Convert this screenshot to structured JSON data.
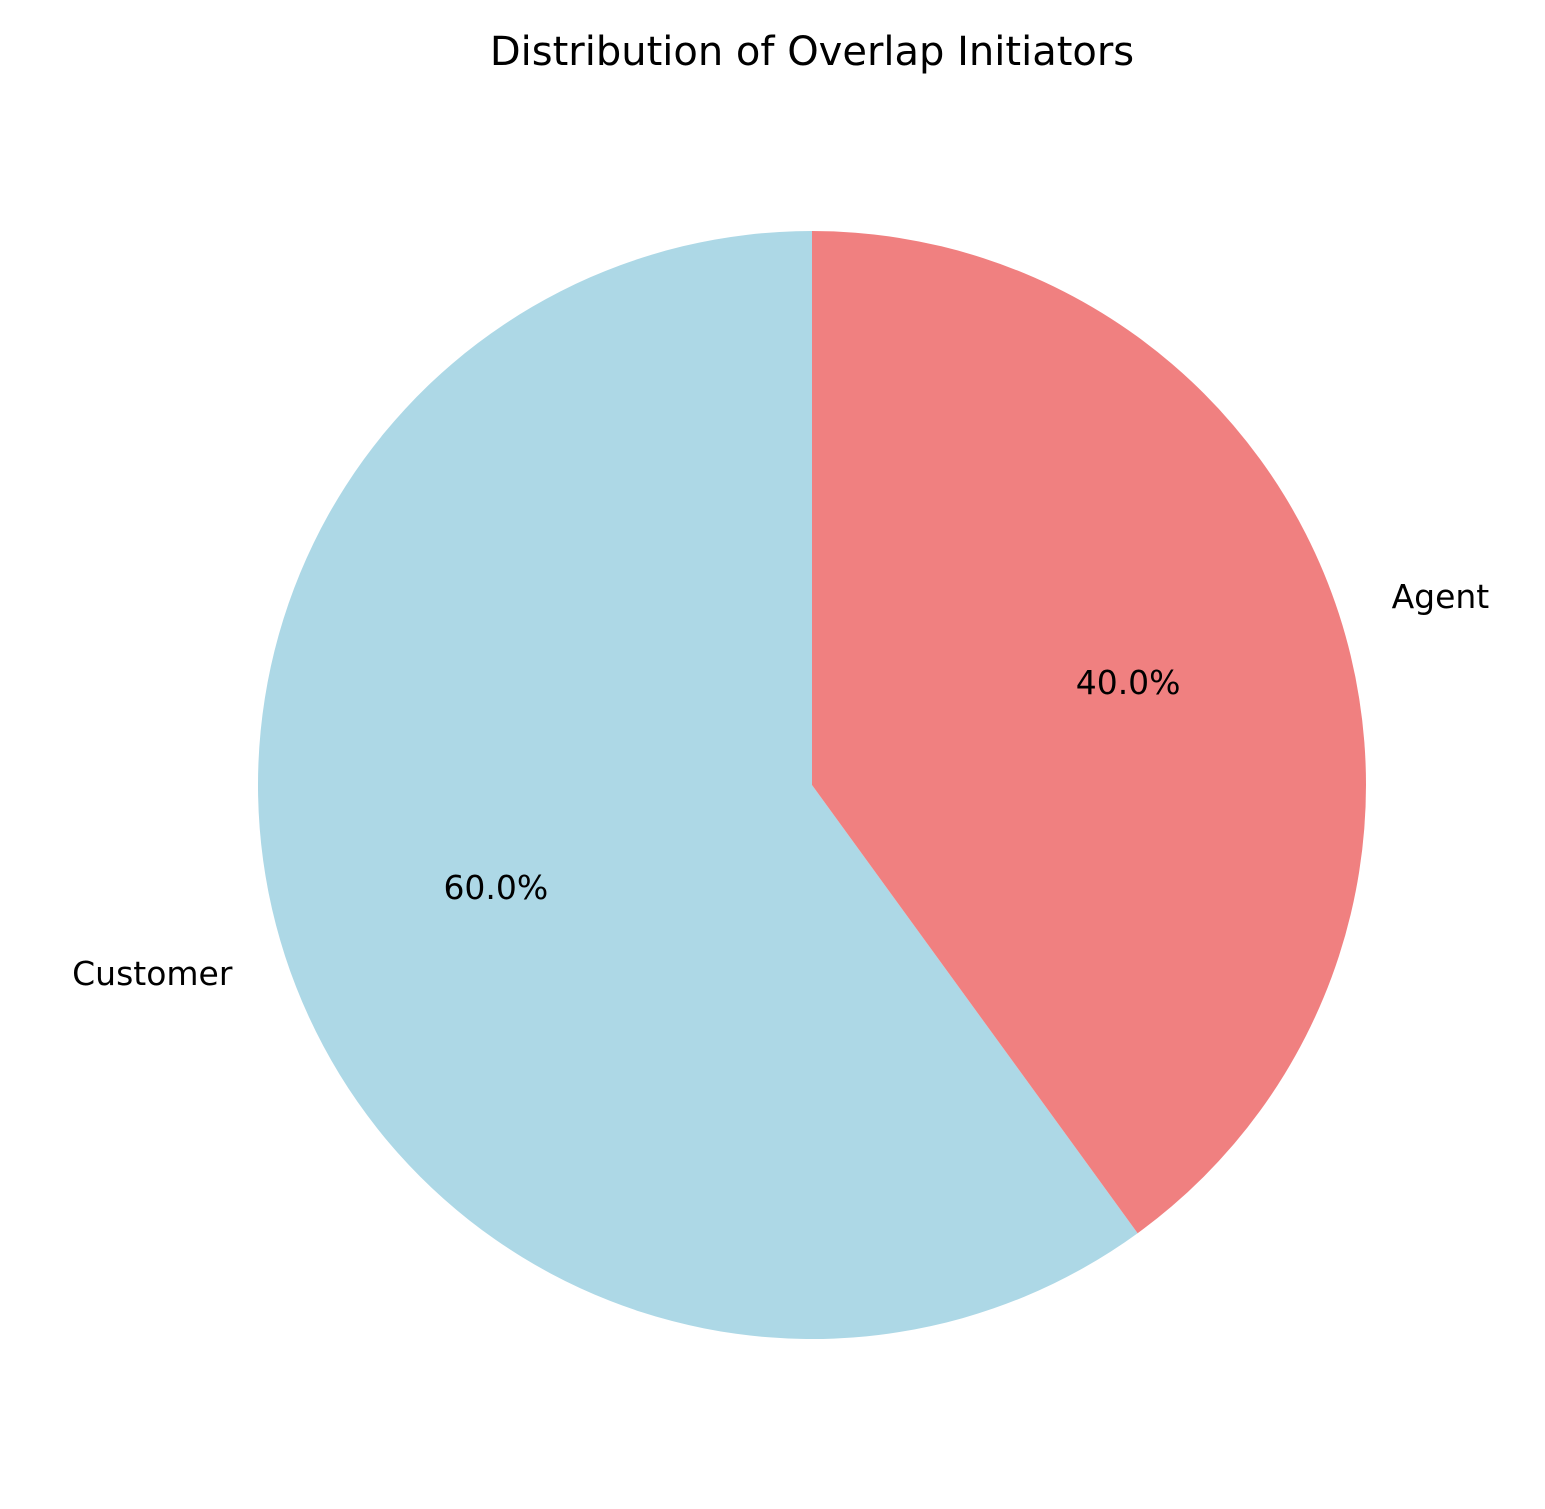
{
  "chart_data": {
    "type": "pie",
    "title": "Distribution of Overlap Initiators",
    "categories": [
      "Customer",
      "Agent"
    ],
    "values": [
      60.0,
      40.0
    ],
    "percent_labels": [
      "60.0%",
      "40.0%"
    ],
    "colors": [
      "#add8e6",
      "#f08080"
    ],
    "start_angle_deg": 90,
    "direction": "counterclockwise",
    "legend": "none"
  }
}
